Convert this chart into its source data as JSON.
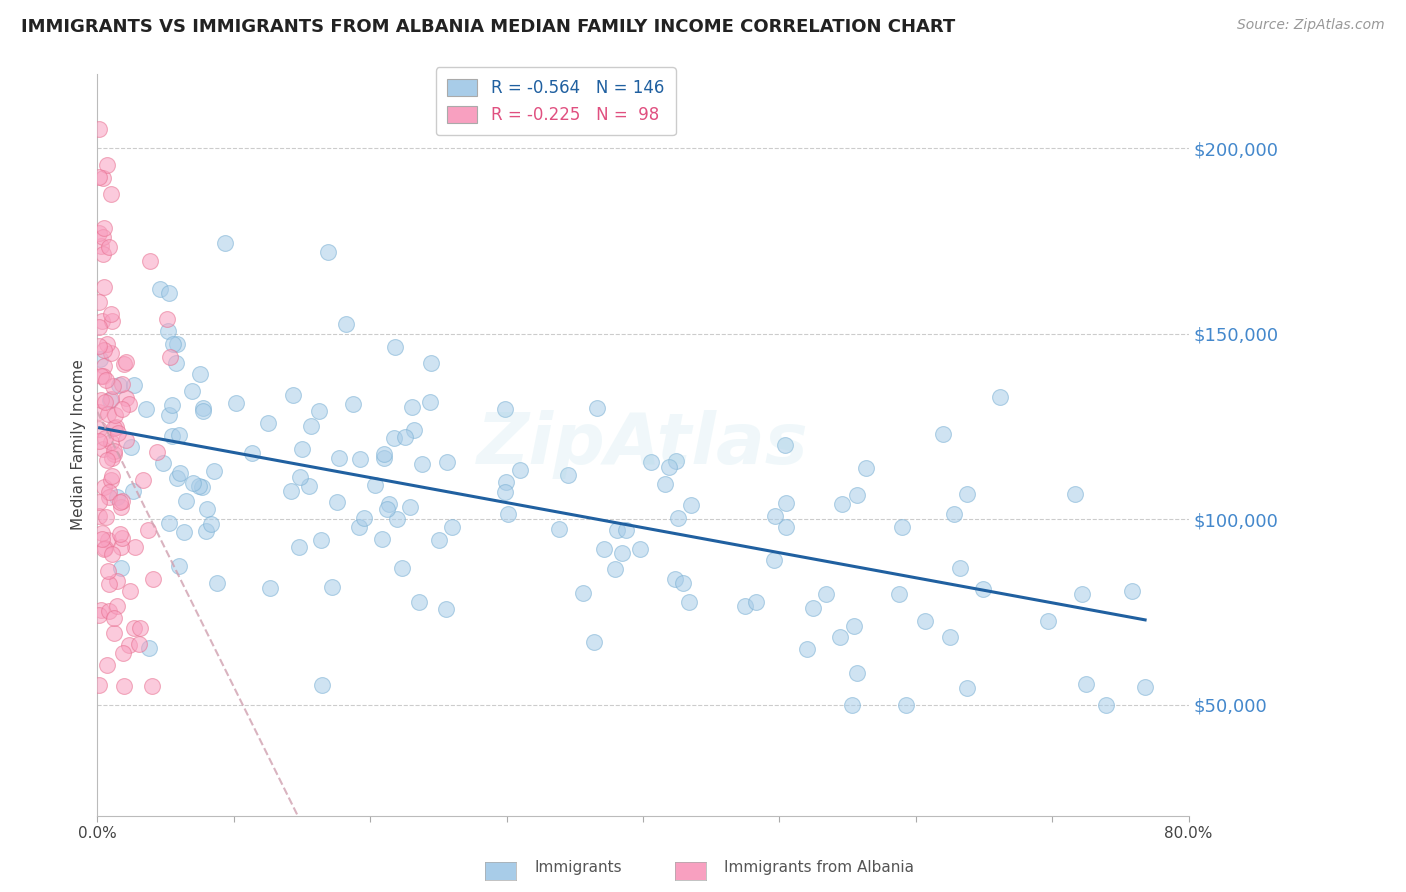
{
  "title": "IMMIGRANTS VS IMMIGRANTS FROM ALBANIA MEDIAN FAMILY INCOME CORRELATION CHART",
  "source": "Source: ZipAtlas.com",
  "ylabel": "Median Family Income",
  "ytick_labels": [
    "$50,000",
    "$100,000",
    "$150,000",
    "$200,000"
  ],
  "ytick_values": [
    50000,
    100000,
    150000,
    200000
  ],
  "ymin": 20000,
  "ymax": 220000,
  "xmin": 0.0,
  "xmax": 0.8,
  "blue_color": "#a8cce8",
  "blue_edge_color": "#7ab0d4",
  "pink_color": "#f8a0c0",
  "pink_edge_color": "#e87090",
  "blue_line_color": "#2060a0",
  "pink_line_color": "#d0a0b0",
  "legend_R_blue": "R = -0.564",
  "legend_N_blue": "N = 146",
  "legend_R_pink": "R = -0.225",
  "legend_N_pink": "N =  98",
  "watermark": "ZipAtlas",
  "blue_R": -0.564,
  "blue_N": 146,
  "pink_R": -0.225,
  "pink_N": 98,
  "marker_size": 130,
  "marker_alpha": 0.55,
  "line_width": 2.2,
  "title_fontsize": 13,
  "source_fontsize": 10,
  "ytick_fontsize": 13,
  "xtick_fontsize": 11,
  "ylabel_fontsize": 11,
  "legend_fontsize": 12
}
